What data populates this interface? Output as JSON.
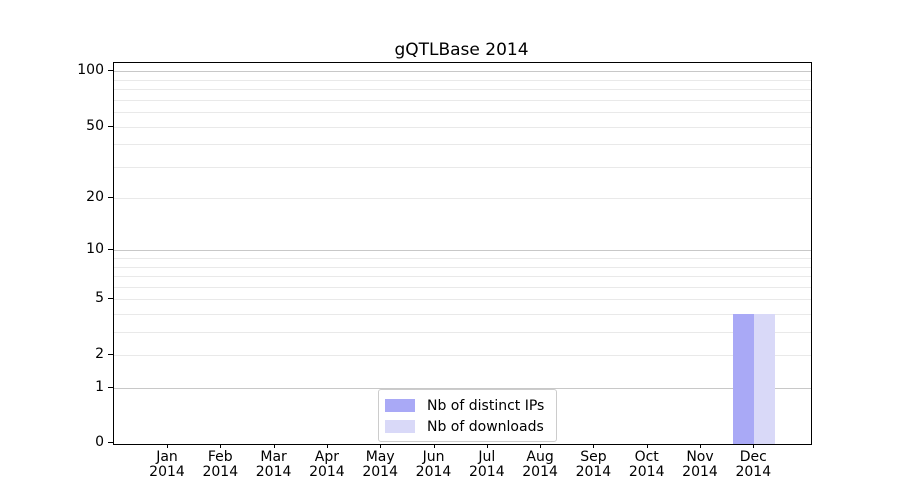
{
  "chart_data": {
    "type": "bar",
    "title": "gQTLBase 2014",
    "xlabel": "",
    "ylabel": "",
    "categories": [
      {
        "month": "Jan",
        "year": "2014"
      },
      {
        "month": "Feb",
        "year": "2014"
      },
      {
        "month": "Mar",
        "year": "2014"
      },
      {
        "month": "Apr",
        "year": "2014"
      },
      {
        "month": "May",
        "year": "2014"
      },
      {
        "month": "Jun",
        "year": "2014"
      },
      {
        "month": "Jul",
        "year": "2014"
      },
      {
        "month": "Aug",
        "year": "2014"
      },
      {
        "month": "Sep",
        "year": "2014"
      },
      {
        "month": "Oct",
        "year": "2014"
      },
      {
        "month": "Nov",
        "year": "2014"
      },
      {
        "month": "Dec",
        "year": "2014"
      }
    ],
    "series": [
      {
        "name": "Nb of distinct IPs",
        "color": "#a9a9f6",
        "values": [
          0,
          0,
          0,
          0,
          0,
          0,
          0,
          0,
          0,
          0,
          0,
          4
        ]
      },
      {
        "name": "Nb of downloads",
        "color": "#d9d9f8",
        "values": [
          0,
          0,
          0,
          0,
          0,
          0,
          0,
          0,
          0,
          0,
          0,
          4
        ]
      }
    ],
    "y_axis": {
      "scale": "log1p",
      "ticks": [
        0,
        1,
        2,
        5,
        10,
        20,
        50,
        100
      ],
      "ylim": [
        0,
        111
      ],
      "major_gridlines": [
        1,
        10,
        100
      ],
      "minor_gridlines": [
        2,
        3,
        4,
        5,
        6,
        7,
        8,
        9,
        20,
        30,
        40,
        50,
        60,
        70,
        80,
        90
      ]
    },
    "legend": {
      "position": "lower-center-inside",
      "entries": [
        "Nb of distinct IPs",
        "Nb of downloads"
      ]
    },
    "grid": true,
    "colors": {
      "spine": "#000000",
      "major_grid": "#c8c8c8",
      "minor_grid": "#e9e9e9",
      "legend_border": "#cccccc",
      "background": "#ffffff"
    }
  }
}
